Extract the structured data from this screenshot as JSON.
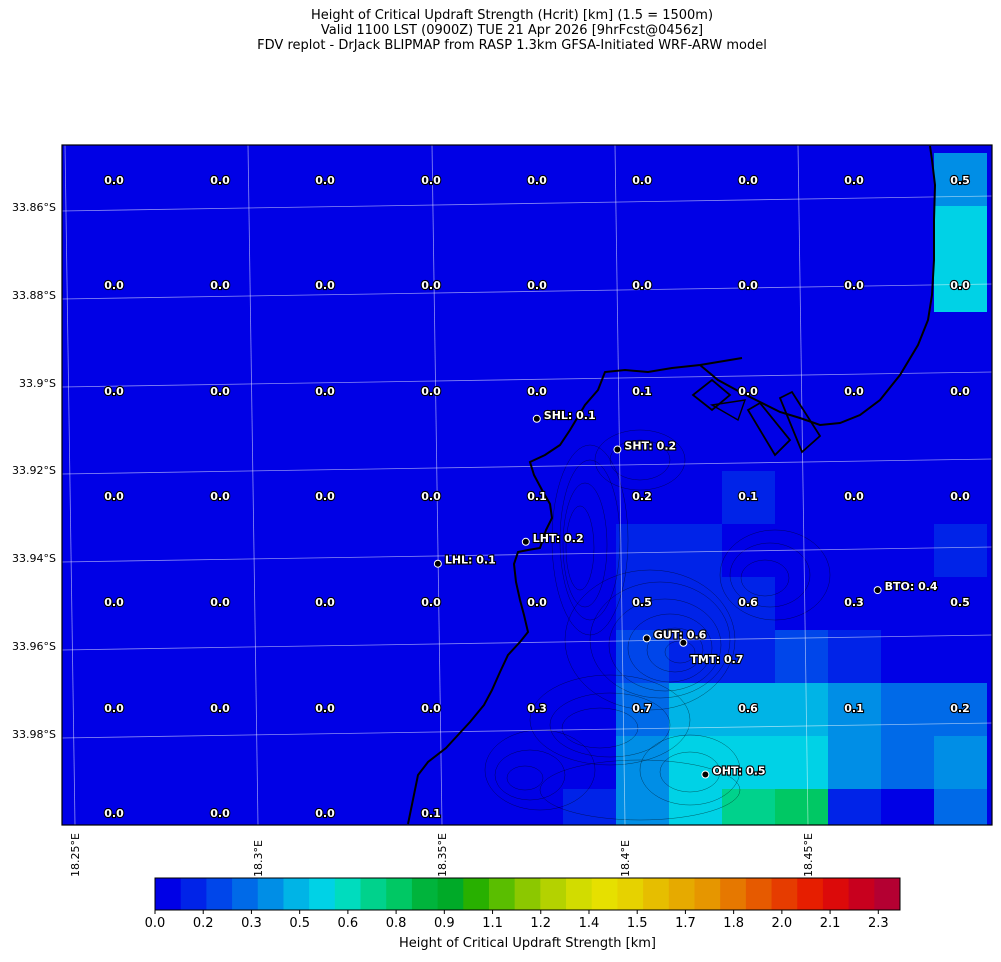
{
  "title": {
    "line1": "Height of Critical Updraft Strength (Hcrit) [km] (1.5 = 1500m)",
    "line2": "Valid 1100 LST (0900Z) TUE 21 Apr 2026 [9hrFcst@0456z]",
    "line3": "FDV replot - DrJack BLIPMAP from RASP 1.3km GFSA-Initiated WRF-ARW model"
  },
  "lat_labels": [
    "33.86°S",
    "33.88°S",
    "33.9°S",
    "33.92°S",
    "33.94°S",
    "33.96°S",
    "33.98°S"
  ],
  "lon_labels": [
    "18.25°E",
    "18.3°E",
    "18.35°E",
    "18.4°E",
    "18.45°E"
  ],
  "colorbar": {
    "label": "Height of Critical Updraft Strength [km]",
    "ticks": [
      "0.0",
      "0.2",
      "0.3",
      "0.5",
      "0.6",
      "0.8",
      "0.9",
      "1.1",
      "1.2",
      "1.4",
      "1.5",
      "1.7",
      "1.8",
      "2.0",
      "2.1",
      "2.3"
    ],
    "colors": [
      "#0000e6",
      "#0023e8",
      "#0046ea",
      "#006ae8",
      "#008ee6",
      "#00b4e6",
      "#00d2e6",
      "#00dcbe",
      "#00d28c",
      "#00c864",
      "#00b43c",
      "#00aa28",
      "#28b000",
      "#5abe00",
      "#8cc800",
      "#b4d200",
      "#d2dc00",
      "#e6e000",
      "#e6d200",
      "#e6be00",
      "#e6aa00",
      "#e69600",
      "#e67800",
      "#e65a00",
      "#e63c00",
      "#e61e00",
      "#dc0a0a",
      "#c8001e",
      "#b40032"
    ]
  },
  "grid_values": {
    "rows": [
      [
        "0.0",
        "0.0",
        "0.0",
        "0.0",
        "0.0",
        "0.0",
        "0.0",
        "0.0",
        "0.5"
      ],
      [
        "0.0",
        "0.0",
        "0.0",
        "0.0",
        "0.0",
        "0.0",
        "0.0",
        "0.0",
        "0.0"
      ],
      [
        "0.0",
        "0.0",
        "0.0",
        "0.0",
        "0.0",
        "0.1",
        "0.0",
        "0.0",
        "0.0"
      ],
      [
        "0.0",
        "0.0",
        "0.0",
        "0.0",
        "0.1",
        "0.2",
        "0.1",
        "0.0",
        "0.0"
      ],
      [
        "0.0",
        "0.0",
        "0.0",
        "0.0",
        "0.0",
        "0.5",
        "0.6",
        "0.3",
        "0.5"
      ],
      [
        "0.0",
        "0.0",
        "0.0",
        "0.0",
        "0.3",
        "0.7",
        "0.6",
        "0.1",
        "0.2"
      ],
      [
        "0.0",
        "0.0",
        "0.0",
        "0.1",
        "",
        "",
        "",
        "",
        ""
      ]
    ]
  },
  "cells": [
    {
      "r": 0,
      "c": 16,
      "v": 0.4
    },
    {
      "r": 1,
      "c": 16,
      "v": 0.5
    },
    {
      "r": 2,
      "c": 16,
      "v": 0.5
    },
    {
      "r": 5,
      "c": 10,
      "v": 0.05
    },
    {
      "r": 5,
      "c": 11,
      "v": 0.05
    },
    {
      "r": 5,
      "c": 12,
      "v": 0.05
    },
    {
      "r": 6,
      "c": 11,
      "v": 0.05
    },
    {
      "r": 6,
      "c": 12,
      "v": 0.1
    },
    {
      "r": 6,
      "c": 13,
      "v": 0.05
    },
    {
      "r": 7,
      "c": 9,
      "v": 0.05
    },
    {
      "r": 7,
      "c": 10,
      "v": 0.1
    },
    {
      "r": 7,
      "c": 11,
      "v": 0.1
    },
    {
      "r": 7,
      "c": 12,
      "v": 0.05
    },
    {
      "r": 7,
      "c": 13,
      "v": 0.05
    },
    {
      "r": 7,
      "c": 16,
      "v": 0.1
    },
    {
      "r": 8,
      "c": 9,
      "v": 0.05
    },
    {
      "r": 8,
      "c": 10,
      "v": 0.1
    },
    {
      "r": 8,
      "c": 11,
      "v": 0.15
    },
    {
      "r": 8,
      "c": 12,
      "v": 0.1
    },
    {
      "r": 8,
      "c": 13,
      "v": 0.05
    },
    {
      "r": 9,
      "c": 9,
      "v": 0.05
    },
    {
      "r": 9,
      "c": 10,
      "v": 0.2
    },
    {
      "r": 9,
      "c": 11,
      "v": 0.15
    },
    {
      "r": 9,
      "c": 12,
      "v": 0.15
    },
    {
      "r": 9,
      "c": 13,
      "v": 0.2
    },
    {
      "r": 9,
      "c": 14,
      "v": 0.15
    },
    {
      "r": 9,
      "c": 15,
      "v": 0.05
    },
    {
      "r": 10,
      "c": 9,
      "v": 0.05
    },
    {
      "r": 10,
      "c": 10,
      "v": 0.3
    },
    {
      "r": 10,
      "c": 11,
      "v": 0.45
    },
    {
      "r": 10,
      "c": 12,
      "v": 0.45
    },
    {
      "r": 10,
      "c": 13,
      "v": 0.45
    },
    {
      "r": 10,
      "c": 14,
      "v": 0.35
    },
    {
      "r": 10,
      "c": 15,
      "v": 0.3
    },
    {
      "r": 10,
      "c": 16,
      "v": 0.3
    },
    {
      "r": 11,
      "c": 9,
      "v": 0.05
    },
    {
      "r": 11,
      "c": 10,
      "v": 0.35
    },
    {
      "r": 11,
      "c": 11,
      "v": 0.5
    },
    {
      "r": 11,
      "c": 12,
      "v": 0.5
    },
    {
      "r": 11,
      "c": 13,
      "v": 0.55
    },
    {
      "r": 11,
      "c": 14,
      "v": 0.35
    },
    {
      "r": 11,
      "c": 15,
      "v": 0.3
    },
    {
      "r": 11,
      "c": 16,
      "v": 0.35
    },
    {
      "r": 12,
      "c": 9,
      "v": 0.1
    },
    {
      "r": 12,
      "c": 10,
      "v": 0.35
    },
    {
      "r": 12,
      "c": 11,
      "v": 0.55
    },
    {
      "r": 12,
      "c": 12,
      "v": 0.65
    },
    {
      "r": 12,
      "c": 13,
      "v": 0.75
    },
    {
      "r": 12,
      "c": 14,
      "v": 0.1
    },
    {
      "r": 12,
      "c": 15,
      "v": 0.05
    },
    {
      "r": 12,
      "c": 16,
      "v": 0.3
    },
    {
      "r": 13,
      "c": 8,
      "v": 0.2
    },
    {
      "r": 13,
      "c": 9,
      "v": 0.3
    },
    {
      "r": 13,
      "c": 10,
      "v": 0.5
    },
    {
      "r": 13,
      "c": 11,
      "v": 0.6
    },
    {
      "r": 13,
      "c": 12,
      "v": 0.65
    },
    {
      "r": 13,
      "c": 13,
      "v": 0.45
    },
    {
      "r": 13,
      "c": 14,
      "v": 0.1
    },
    {
      "r": 13,
      "c": 15,
      "v": 0.05
    },
    {
      "r": 13,
      "c": 16,
      "v": 0.15
    },
    {
      "r": 14,
      "c": 8,
      "v": 0.2
    },
    {
      "r": 14,
      "c": 9,
      "v": 0.4
    },
    {
      "r": 14,
      "c": 10,
      "v": 0.5
    },
    {
      "r": 14,
      "c": 11,
      "v": 0.55
    },
    {
      "r": 14,
      "c": 12,
      "v": 0.5
    },
    {
      "r": 14,
      "c": 13,
      "v": 0.3
    },
    {
      "r": 14,
      "c": 14,
      "v": 0.05
    },
    {
      "r": 15,
      "c": 7,
      "v": 0.1
    },
    {
      "r": 15,
      "c": 8,
      "v": 0.3
    },
    {
      "r": 15,
      "c": 9,
      "v": 0.45
    },
    {
      "r": 15,
      "c": 10,
      "v": 0.5
    },
    {
      "r": 15,
      "c": 11,
      "v": 0.45
    },
    {
      "r": 15,
      "c": 12,
      "v": 0.3
    },
    {
      "r": 15,
      "c": 13,
      "v": 0.2
    },
    {
      "r": 15,
      "c": 14,
      "v": 0.1
    },
    {
      "r": 16,
      "c": 7,
      "v": 0.1
    },
    {
      "r": 16,
      "c": 8,
      "v": 0.35
    },
    {
      "r": 16,
      "c": 9,
      "v": 0.45
    },
    {
      "r": 16,
      "c": 10,
      "v": 0.4
    },
    {
      "r": 16,
      "c": 11,
      "v": 0.4
    },
    {
      "r": 16,
      "c": 12,
      "v": 0.2
    },
    {
      "r": 16,
      "c": 13,
      "v": 0.1
    },
    {
      "r": 16,
      "c": 14,
      "v": 0.05
    }
  ],
  "stations": [
    {
      "label": "SHL: 0.1",
      "x": 18.376,
      "y": -33.908
    },
    {
      "label": "SHT: 0.2",
      "x": 18.398,
      "y": -33.915
    },
    {
      "label": "LHT: 0.2",
      "x": 18.373,
      "y": -33.936
    },
    {
      "label": "LHL: 0.1",
      "x": 18.349,
      "y": -33.941
    },
    {
      "label": "BTO: 0.4",
      "x": 18.469,
      "y": -33.947
    },
    {
      "label": "GUT: 0.6",
      "x": 18.406,
      "y": -33.958
    },
    {
      "label": "TMT: 0.7",
      "x": 18.416,
      "y": -33.959
    },
    {
      "label": "OHT: 0.5",
      "x": 18.422,
      "y": -33.989
    }
  ]
}
